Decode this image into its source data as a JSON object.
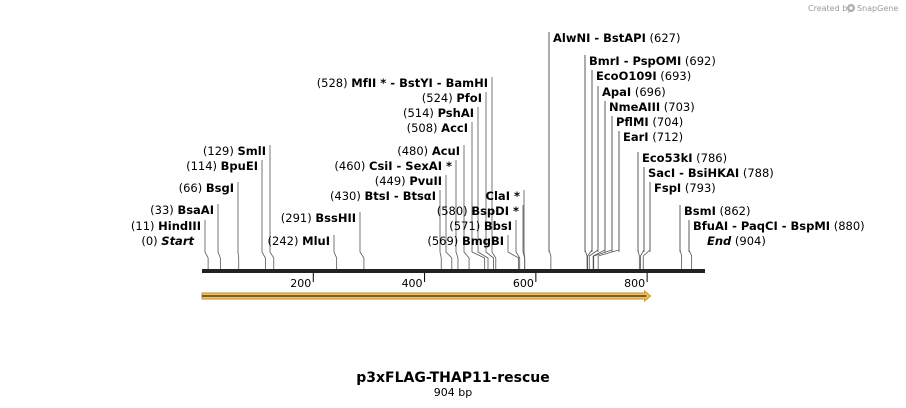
{
  "credit": {
    "prefix": "Created by",
    "brand": "SnapGene"
  },
  "title": "p3xFLAG-THAP11-rescue",
  "length_label": "904 bp",
  "ruler": {
    "min": 0,
    "max": 904,
    "ticks": [
      "200",
      "400",
      "600",
      "800"
    ]
  },
  "feature": {
    "start": 0,
    "end": 806,
    "color": "#f0c060"
  },
  "sites": [
    {
      "pos": 0,
      "num": "(0)",
      "name": "Start",
      "italic": true
    },
    {
      "pos": 11,
      "num": "(11)",
      "name": "HindIII"
    },
    {
      "pos": 33,
      "num": "(33)",
      "name": "BsaAI"
    },
    {
      "pos": 66,
      "num": "(66)",
      "name": "BsgI"
    },
    {
      "pos": 114,
      "num": "(114)",
      "name": "BpuEI"
    },
    {
      "pos": 129,
      "num": "(129)",
      "name": "SmlI"
    },
    {
      "pos": 242,
      "num": "(242)",
      "name": "MluI"
    },
    {
      "pos": 291,
      "num": "(291)",
      "name": "BssHII"
    },
    {
      "pos": 430,
      "num": "(430)",
      "name": "BtsI  -  BtsαI"
    },
    {
      "pos": 449,
      "num": "(449)",
      "name": "PvuII"
    },
    {
      "pos": 460,
      "num": "(460)",
      "name": "CsiI  -  SexAI *"
    },
    {
      "pos": 480,
      "num": "(480)",
      "name": "AcuI"
    },
    {
      "pos": 508,
      "num": "(508)",
      "name": "AccI"
    },
    {
      "pos": 514,
      "num": "(514)",
      "name": "PshAI"
    },
    {
      "pos": 524,
      "num": "(524)",
      "name": "PfoI"
    },
    {
      "pos": 528,
      "num": "(528)",
      "name": "MfII *  -  BstYI  -  BamHI"
    },
    {
      "pos": 569,
      "num": "(569)",
      "name": "BmgBI"
    },
    {
      "pos": 571,
      "num": "(571)",
      "name": "BbsI"
    },
    {
      "pos": 580,
      "num": "(580)",
      "name": "BspDI *"
    },
    {
      "pos": 580,
      "num": "",
      "name": "ClaI *"
    },
    {
      "pos": 627,
      "num": "(627)",
      "name": "AlwNI  -  BstAPI"
    },
    {
      "pos": 692,
      "num": "(692)",
      "name": "BmrI  -  PspOMI"
    },
    {
      "pos": 693,
      "num": "(693)",
      "name": "EcoO109I"
    },
    {
      "pos": 696,
      "num": "(696)",
      "name": "ApaI"
    },
    {
      "pos": 703,
      "num": "(703)",
      "name": "NmeAIII"
    },
    {
      "pos": 704,
      "num": "(704)",
      "name": "PflMI"
    },
    {
      "pos": 712,
      "num": "(712)",
      "name": "EarI"
    },
    {
      "pos": 786,
      "num": "(786)",
      "name": "Eco53kI"
    },
    {
      "pos": 788,
      "num": "(788)",
      "name": "SacI  -  BsiHKAI"
    },
    {
      "pos": 793,
      "num": "(793)",
      "name": "FspI"
    },
    {
      "pos": 862,
      "num": "(862)",
      "name": "BsmI"
    },
    {
      "pos": 880,
      "num": "(880)",
      "name": "BfuAI  -  PaqCI  -  BspMI"
    },
    {
      "pos": 904,
      "num": "(904)",
      "name": "End",
      "italic": true
    }
  ]
}
